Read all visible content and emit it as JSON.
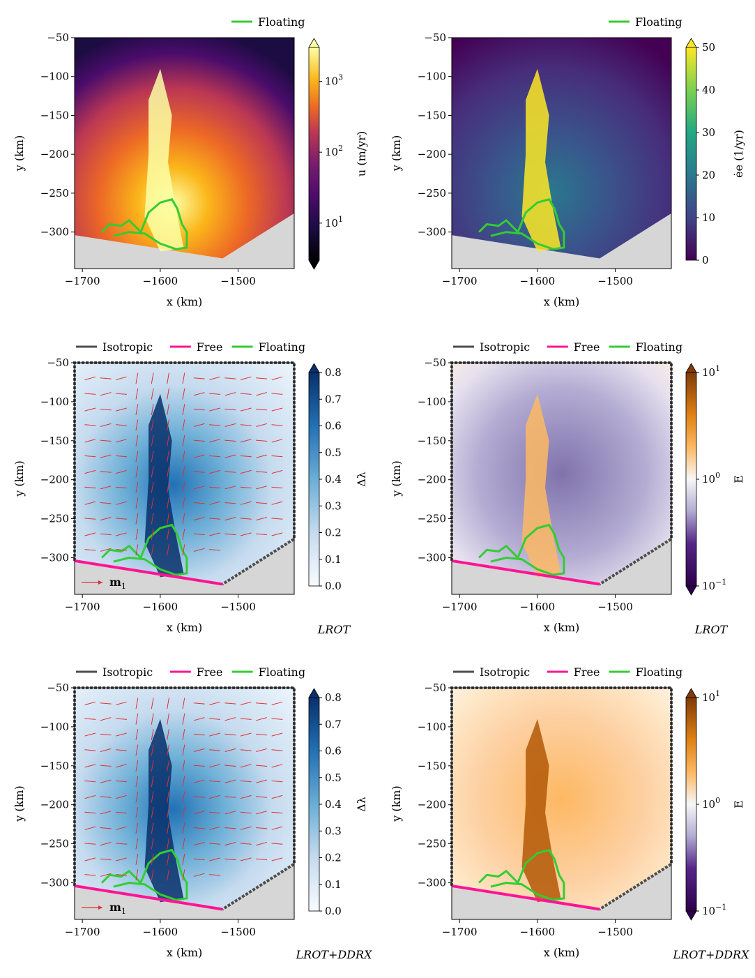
{
  "legend": {
    "isotropic": "Isotropic",
    "free": "Free",
    "floating": "Floating"
  },
  "colors": {
    "isotropic": "#4d4d4d",
    "free": "#ff1493",
    "floating": "#33cc33",
    "land": "#d6d6d6",
    "arrows": "#e03131"
  },
  "axes": {
    "xlabel": "x (km)",
    "ylabel": "y (km)",
    "xticks": [
      -1700,
      -1600,
      -1500
    ],
    "yticks": [
      -50,
      -100,
      -150,
      -200,
      -250,
      -300
    ],
    "xtick_labels": [
      "−1700",
      "−1600",
      "−1500"
    ],
    "ytick_labels": [
      "−50",
      "−100",
      "−150",
      "−200",
      "−250",
      "−300"
    ],
    "xlim": [
      -1710,
      -1428
    ],
    "ylim": [
      -347,
      -50
    ]
  },
  "arrow_label": "m",
  "arrow_label_sub": "1",
  "panels": [
    {
      "id": "velocity",
      "legend": [
        "floating"
      ],
      "mode_label": "",
      "colorbar": {
        "label": "u (m/yr)",
        "scale": "log",
        "ticks": [
          "10",
          "10",
          "10"
        ],
        "exps": [
          "1",
          "2",
          "3"
        ],
        "range": [
          3,
          3000
        ],
        "colormap": "inferno"
      }
    },
    {
      "id": "strain-rate",
      "legend": [
        "floating"
      ],
      "mode_label": "",
      "colorbar": {
        "label": "ėe (1/yr)",
        "scale": "linear",
        "ticks": [
          "0",
          "10",
          "20",
          "30",
          "40",
          "50"
        ],
        "range": [
          0,
          50
        ],
        "colormap": "viridis"
      }
    },
    {
      "id": "delta-lambda-lrot",
      "legend": [
        "isotropic",
        "free",
        "floating"
      ],
      "mode_label": "LROT",
      "colorbar": {
        "label": "Δλ",
        "scale": "linear",
        "ticks": [
          "0.0",
          "0.1",
          "0.2",
          "0.3",
          "0.4",
          "0.5",
          "0.6",
          "0.7",
          "0.8"
        ],
        "range": [
          0,
          0.8
        ],
        "colormap": "Blues"
      }
    },
    {
      "id": "enhancement-lrot",
      "legend": [
        "isotropic",
        "free",
        "floating"
      ],
      "mode_label": "LROT",
      "colorbar": {
        "label": "E",
        "scale": "log",
        "ticks": [
          "10",
          "10",
          "10"
        ],
        "exps": [
          "−1",
          "0",
          "1"
        ],
        "range": [
          0.1,
          10
        ],
        "colormap": "PuOr"
      }
    },
    {
      "id": "delta-lambda-lrot-ddrx",
      "legend": [
        "isotropic",
        "free",
        "floating"
      ],
      "mode_label": "LROT+DDRX",
      "colorbar": {
        "label": "Δλ",
        "scale": "linear",
        "ticks": [
          "0.0",
          "0.1",
          "0.2",
          "0.3",
          "0.4",
          "0.5",
          "0.6",
          "0.7",
          "0.8"
        ],
        "range": [
          0,
          0.8
        ],
        "colormap": "Blues"
      }
    },
    {
      "id": "enhancement-lrot-ddrx",
      "legend": [
        "isotropic",
        "free",
        "floating"
      ],
      "mode_label": "LROT+DDRX",
      "colorbar": {
        "label": "E",
        "scale": "log",
        "ticks": [
          "10",
          "10",
          "10"
        ],
        "exps": [
          "−1",
          "0",
          "1"
        ],
        "range": [
          0.1,
          10
        ],
        "colormap": "PuOr"
      }
    }
  ],
  "chart_data": [
    {
      "type": "heatmap",
      "panel": "velocity",
      "zlabel": "u (m/yr)",
      "xlabel": "x (km)",
      "ylabel": "y (km)",
      "legend": [
        "Floating"
      ],
      "zscale": "log",
      "zlim": [
        3,
        3000
      ]
    },
    {
      "type": "heatmap",
      "panel": "strain-rate",
      "zlabel": "ėe (1/yr)",
      "xlabel": "x (km)",
      "ylabel": "y (km)",
      "legend": [
        "Floating"
      ],
      "zlim": [
        0,
        50
      ]
    },
    {
      "type": "heatmap",
      "panel": "delta-lambda-lrot",
      "zlabel": "Δλ",
      "xlabel": "x (km)",
      "ylabel": "y (km)",
      "legend": [
        "Isotropic",
        "Free",
        "Floating"
      ],
      "zlim": [
        0,
        0.8
      ]
    },
    {
      "type": "heatmap",
      "panel": "enhancement-lrot",
      "zlabel": "E",
      "xlabel": "x (km)",
      "ylabel": "y (km)",
      "legend": [
        "Isotropic",
        "Free",
        "Floating"
      ],
      "zscale": "log",
      "zlim": [
        0.1,
        10
      ]
    },
    {
      "type": "heatmap",
      "panel": "delta-lambda-lrot-ddrx",
      "zlabel": "Δλ",
      "xlabel": "x (km)",
      "ylabel": "y (km)",
      "legend": [
        "Isotropic",
        "Free",
        "Floating"
      ],
      "zlim": [
        0,
        0.8
      ]
    },
    {
      "type": "heatmap",
      "panel": "enhancement-lrot-ddrx",
      "zlabel": "E",
      "xlabel": "x (km)",
      "ylabel": "y (km)",
      "legend": [
        "Isotropic",
        "Free",
        "Floating"
      ],
      "zscale": "log",
      "zlim": [
        0.1,
        10
      ]
    }
  ]
}
